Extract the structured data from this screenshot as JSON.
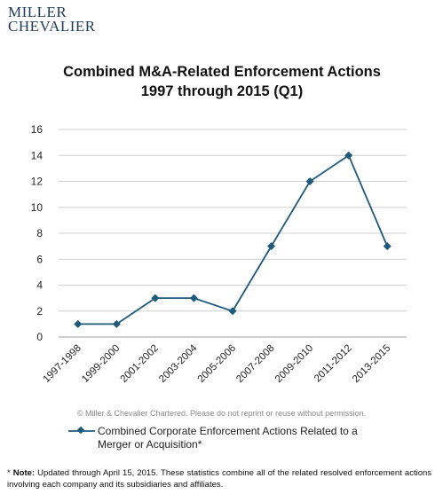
{
  "logo": {
    "line1": "MILLER",
    "line2": "CHEVALIER"
  },
  "copyright": "© Miller & Chevalier Chartered. Please do not reprint or reuse without permission.",
  "note": {
    "label": "Note:",
    "text": "Updated through April 15, 2015. These statistics combine  all of the related resolved enforcement actions involving each company and its subsidiaries and affiliates."
  },
  "colors": {
    "series": "#1f5a7a",
    "grid": "#cfcfcf",
    "logo": "#1f3a5a"
  },
  "chart_data": {
    "type": "line",
    "title": "Combined M&A-Related Enforcement Actions",
    "subtitle": "1997 through 2015 (Q1)",
    "categories": [
      "1997-1998",
      "1999-2000",
      "2001-2002",
      "2003-2004",
      "2005-2006",
      "2007-2008",
      "2009-2010",
      "2011-2012",
      "2013-2015"
    ],
    "series": [
      {
        "name": "Combined Corporate Enforcement Actions Related to a Merger or Acquisition*",
        "values": [
          1,
          1,
          3,
          3,
          2,
          7,
          12,
          14,
          7
        ],
        "marker": "diamond"
      }
    ],
    "ylim": [
      0,
      16
    ],
    "yticks": [
      0,
      2,
      4,
      6,
      8,
      10,
      12,
      14,
      16
    ],
    "grid": true,
    "legend": "bottom"
  }
}
